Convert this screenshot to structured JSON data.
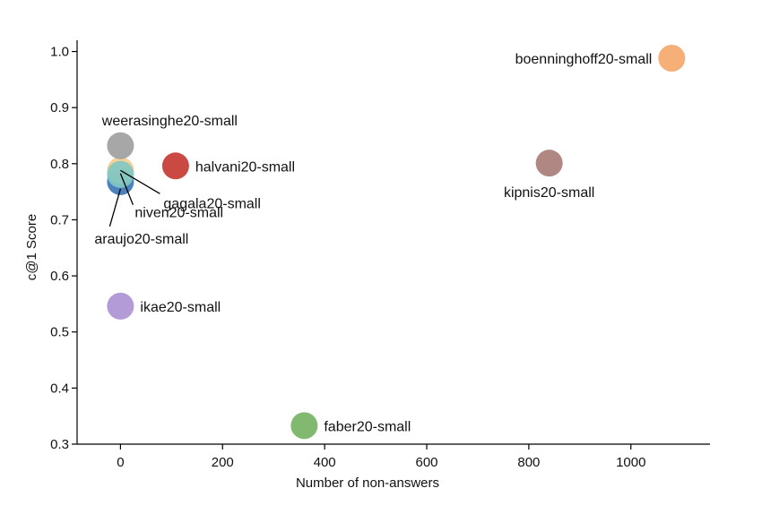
{
  "chart_data": {
    "type": "scatter",
    "title": "",
    "xlabel": "Number of non-answers",
    "ylabel": "c@1 Score",
    "xlim": [
      -85,
      1155
    ],
    "ylim": [
      0.3,
      1.02
    ],
    "x_ticks": [
      "0",
      "200",
      "400",
      "600",
      "800",
      "1000"
    ],
    "y_ticks": [
      "0.3",
      "0.4",
      "0.5",
      "0.6",
      "0.7",
      "0.8",
      "0.9",
      "1.0"
    ],
    "grid": false,
    "points": [
      {
        "label": "boenninghoff20-small",
        "x": 1080,
        "y": 0.988,
        "color": "#f5a86a"
      },
      {
        "label": "kipnis20-small",
        "x": 840,
        "y": 0.801,
        "color": "#a97d78"
      },
      {
        "label": "weerasinghe20-small",
        "x": 0,
        "y": 0.832,
        "color": "#a0a0a0"
      },
      {
        "label": "halvani20-small",
        "x": 108,
        "y": 0.796,
        "color": "#c63a33"
      },
      {
        "label": "gagala20-small",
        "x": 0,
        "y": 0.788,
        "color": "#f4cd8c"
      },
      {
        "label": "araujo20-small",
        "x": 0,
        "y": 0.768,
        "color": "#3d77b6"
      },
      {
        "label": "niven20-small",
        "x": 0,
        "y": 0.781,
        "color": "#80c7c3"
      },
      {
        "label": "ikae20-small",
        "x": 0,
        "y": 0.546,
        "color": "#ab93d2"
      },
      {
        "label": "faber20-small",
        "x": 360,
        "y": 0.333,
        "color": "#76b364"
      }
    ]
  }
}
